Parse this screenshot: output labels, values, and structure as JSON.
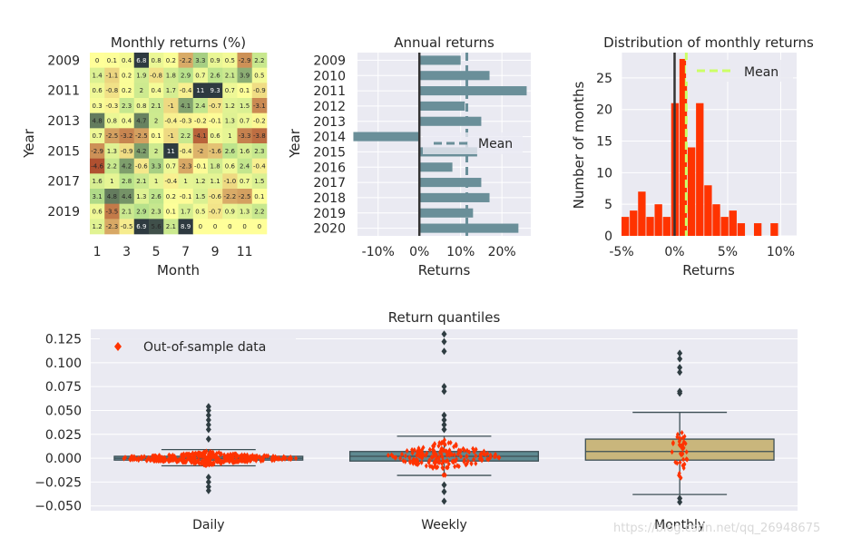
{
  "colors": {
    "panel_bg": "#eaeaf2",
    "grid": "#ffffff",
    "text": "#262626",
    "bar": "#6a8f99",
    "hist": "#ff3300",
    "mean_line": "#ccff66",
    "zero_line": "#333333",
    "weekly_box": "#5f8a91",
    "monthly_box": "#c9b67c",
    "swarm": "#ff3300",
    "heat_low": "#b05030",
    "heat_mid": "#ffff99",
    "heat_high": "#2e3a40"
  },
  "chart_data": [
    {
      "type": "heatmap",
      "title": "Monthly returns (%)",
      "xlabel": "Month",
      "ylabel": "Year",
      "x_ticks": [
        "1",
        "3",
        "5",
        "7",
        "9",
        "11"
      ],
      "y_ticks": [
        "2009",
        "2011",
        "2013",
        "2015",
        "2017",
        "2019"
      ],
      "years": [
        "2009",
        "2010",
        "2011",
        "2012",
        "2013",
        "2014",
        "2015",
        "2016",
        "2017",
        "2018",
        "2019",
        "2020"
      ],
      "months": [
        "1",
        "2",
        "3",
        "4",
        "5",
        "6",
        "7",
        "8",
        "9",
        "10",
        "11",
        "12"
      ],
      "cells": [
        [
          "0",
          "0.1",
          "0.4",
          "6.8",
          "0.8",
          "0.2",
          "-2.2",
          "3.3",
          "0.9",
          "0.5",
          "-2.9",
          "2.2"
        ],
        [
          "1.4",
          "-1.1",
          "0.2",
          "1.9",
          "-0.8",
          "1.8",
          "2.9",
          "0.7",
          "2.6",
          "2.1",
          "3.9",
          "0.5"
        ],
        [
          "0.6",
          "-0.8",
          "0.2",
          "2",
          "0.4",
          "1.7",
          "-0.4",
          "11",
          "9.3",
          "0.7",
          "0.1",
          "-0.9"
        ],
        [
          "0.3",
          "-0.3",
          "2.3",
          "0.8",
          "2.1",
          "-1",
          "4.1",
          "2.4",
          "-0.7",
          "1.2",
          "1.5",
          "-3.1"
        ],
        [
          "4.8",
          "0.8",
          "0.4",
          "4.7",
          "2",
          "-0.4",
          "-0.3",
          "-0.2",
          "-0.1",
          "1.3",
          "0.7",
          "-0.2"
        ],
        [
          "0.7",
          "-2.5",
          "-3.2",
          "-2.5",
          "0.1",
          "-1",
          "2.2",
          "-4.1",
          "0.6",
          "1",
          "-3.3",
          "-3.8"
        ],
        [
          "-2.9",
          "1.3",
          "-0.9",
          "4.2",
          "2",
          "11",
          "-0.4",
          "-2",
          "-1.6",
          "2.6",
          "1.6",
          "2.3"
        ],
        [
          "-4.6",
          "2.2",
          "4.2",
          "-0.6",
          "3.3",
          "0.7",
          "-2.3",
          "-0.1",
          "1.8",
          "0.6",
          "2.4",
          "-0.4"
        ],
        [
          "1.6",
          "1",
          "2.8",
          "2.1",
          "1",
          "-0.4",
          "1",
          "1.2",
          "1.1",
          "-1.0",
          "0.7",
          "1.5"
        ],
        [
          "3.1",
          "4.8",
          "4.4",
          "1.3",
          "2.6",
          "0.2",
          "-0.1",
          "1.5",
          "-0.6",
          "-2.2",
          "-2.5",
          "0.1"
        ],
        [
          "0.6",
          "-3.5",
          "2.1",
          "2.9",
          "2.3",
          "0.1",
          "1.7",
          "0.5",
          "-0.7",
          "0.9",
          "1.3",
          "2.2"
        ],
        [
          "1.2",
          "-2.3",
          "-0.5",
          "6.9",
          "5.6",
          "2.1",
          "8.9",
          "0",
          "0",
          "0",
          "0",
          "0"
        ]
      ]
    },
    {
      "type": "bar",
      "title": "Annual returns",
      "xlabel": "Returns",
      "ylabel": "Year",
      "categories": [
        "2009",
        "2010",
        "2011",
        "2012",
        "2013",
        "2014",
        "2015",
        "2016",
        "2017",
        "2018",
        "2019",
        "2020"
      ],
      "values": [
        0.1,
        0.17,
        0.26,
        0.11,
        0.15,
        -0.16,
        0.14,
        0.08,
        0.15,
        0.17,
        0.13,
        0.24
      ],
      "xlim": [
        -0.15,
        0.27
      ],
      "x_ticks": [
        "-10%",
        "0%",
        "10%",
        "20%"
      ],
      "mean": 0.115,
      "legend": [
        "Mean"
      ],
      "legend_position": "center-right"
    },
    {
      "type": "bar",
      "title": "Distribution of monthly returns",
      "xlabel": "Returns",
      "ylabel": "Number of months",
      "bin_start": -0.05,
      "bin_width": 0.0078,
      "counts": [
        3,
        4,
        7,
        3,
        5,
        3,
        21,
        28,
        14,
        21,
        8,
        5,
        3,
        4,
        2,
        0,
        2,
        0,
        2,
        0,
        0,
        0,
        0,
        0,
        0,
        0
      ],
      "xlim": [
        -0.05,
        0.115
      ],
      "ylim": [
        0,
        29
      ],
      "x_ticks": [
        "-5%",
        "0%",
        "5%",
        "10%"
      ],
      "y_ticks": [
        "0",
        "5",
        "10",
        "15",
        "20",
        "25"
      ],
      "mean": 0.011,
      "legend": [
        "Mean"
      ],
      "legend_position": "top-right"
    },
    {
      "type": "box",
      "title": "Return quantiles",
      "categories": [
        "Daily",
        "Weekly",
        "Monthly"
      ],
      "ylim": [
        -0.055,
        0.135
      ],
      "y_ticks": [
        "−0.050",
        "−0.025",
        "0.000",
        "0.025",
        "0.050",
        "0.075",
        "0.100",
        "0.125"
      ],
      "legend": [
        "Out-of-sample data"
      ],
      "legend_position": "top-left",
      "boxes": [
        {
          "q1": -0.002,
          "median": 0.0,
          "q3": 0.002,
          "whisker_low": -0.008,
          "whisker_high": 0.009,
          "outliers": [
            0.054,
            0.05,
            0.045,
            0.04,
            0.035,
            0.03,
            0.02,
            -0.02,
            -0.025,
            -0.03,
            -0.034
          ]
        },
        {
          "q1": -0.003,
          "median": 0.002,
          "q3": 0.007,
          "whisker_low": -0.018,
          "whisker_high": 0.023,
          "outliers": [
            0.13,
            0.122,
            0.112,
            0.075,
            0.07,
            0.045,
            0.04,
            0.035,
            0.03,
            -0.028,
            -0.035,
            -0.045
          ]
        },
        {
          "q1": -0.002,
          "median": 0.007,
          "q3": 0.02,
          "whisker_low": -0.038,
          "whisker_high": 0.048,
          "outliers": [
            0.11,
            0.104,
            0.095,
            0.09,
            0.07,
            0.068,
            -0.042,
            -0.046
          ]
        }
      ]
    }
  ],
  "watermark": "https://blog.csdn.net/qq_26948675"
}
